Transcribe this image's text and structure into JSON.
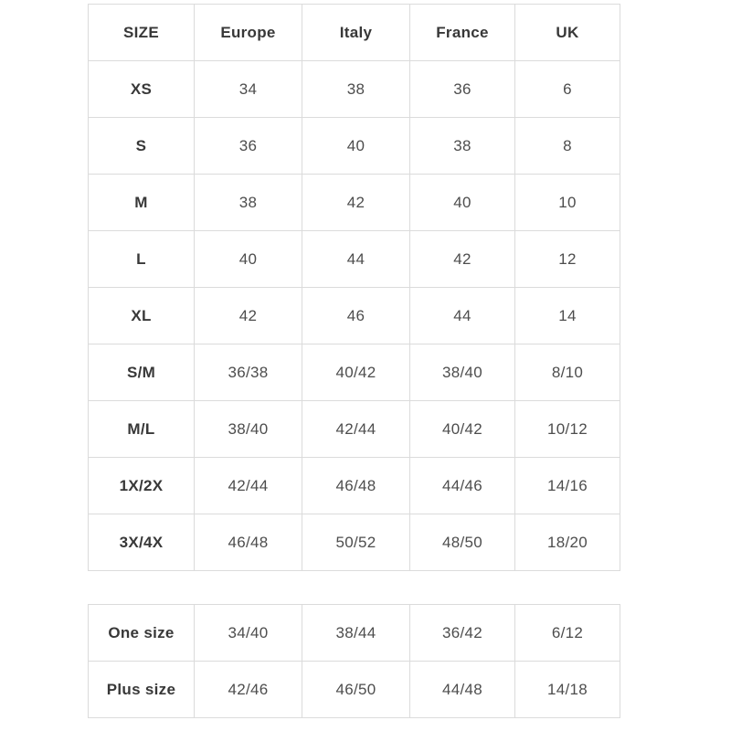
{
  "main_table": {
    "columns": [
      "SIZE",
      "Europe",
      "Italy",
      "France",
      "UK"
    ],
    "rows": [
      {
        "size": "XS",
        "europe": "34",
        "italy": "38",
        "france": "36",
        "uk": "6"
      },
      {
        "size": "S",
        "europe": "36",
        "italy": "40",
        "france": "38",
        "uk": "8"
      },
      {
        "size": "M",
        "europe": "38",
        "italy": "42",
        "france": "40",
        "uk": "10"
      },
      {
        "size": "L",
        "europe": "40",
        "italy": "44",
        "france": "42",
        "uk": "12"
      },
      {
        "size": "XL",
        "europe": "42",
        "italy": "46",
        "france": "44",
        "uk": "14"
      },
      {
        "size": "S/M",
        "europe": "36/38",
        "italy": "40/42",
        "france": "38/40",
        "uk": "8/10"
      },
      {
        "size": "M/L",
        "europe": "38/40",
        "italy": "42/44",
        "france": "40/42",
        "uk": "10/12"
      },
      {
        "size": "1X/2X",
        "europe": "42/44",
        "italy": "46/48",
        "france": "44/46",
        "uk": "14/16"
      },
      {
        "size": "3X/4X",
        "europe": "46/48",
        "italy": "50/52",
        "france": "48/50",
        "uk": "18/20"
      }
    ]
  },
  "special_table": {
    "rows": [
      {
        "size": "One size",
        "europe": "34/40",
        "italy": "38/44",
        "france": "36/42",
        "uk": "6/12"
      },
      {
        "size": "Plus size",
        "europe": "42/46",
        "italy": "46/50",
        "france": "44/48",
        "uk": "14/18"
      }
    ]
  }
}
